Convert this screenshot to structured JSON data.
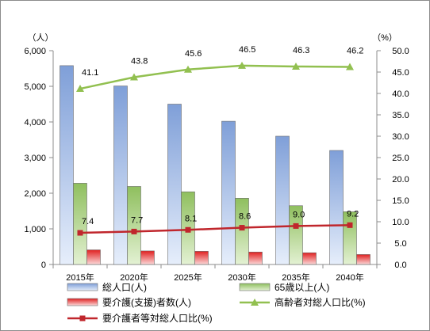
{
  "chart_data": {
    "type": "bar",
    "categories": [
      "2015年",
      "2020年",
      "2025年",
      "2030年",
      "2035年",
      "2040年"
    ],
    "y_left": {
      "label": "（人）",
      "min": 0,
      "max": 6000,
      "step": 1000,
      "ticks": [
        "0",
        "1,000",
        "2,000",
        "3,000",
        "4,000",
        "5,000",
        "6,000"
      ]
    },
    "y_right": {
      "label": "（%）",
      "min": 0,
      "max": 50,
      "step": 5,
      "ticks": [
        "0.0",
        "5.0",
        "10.0",
        "15.0",
        "20.0",
        "25.0",
        "30.0",
        "35.0",
        "40.0",
        "45.0",
        "50.0"
      ]
    },
    "grid": false,
    "legend_position": "bottom",
    "series": [
      {
        "name": "総人口(人)",
        "type": "bar",
        "axis": "left",
        "color": "#7f9fd8",
        "light": "#e6eefb",
        "values": [
          5580,
          5010,
          4500,
          4020,
          3600,
          3200
        ]
      },
      {
        "name": "65歳以上(人)",
        "type": "bar",
        "axis": "left",
        "color": "#8fbf5e",
        "light": "#e3f1d3",
        "values": [
          2280,
          2190,
          2040,
          1860,
          1650,
          1480
        ]
      },
      {
        "name": "要介護(支援)者数(人)",
        "type": "bar",
        "axis": "left",
        "color": "#e02020",
        "light": "#fbd8d8",
        "values": [
          410,
          380,
          370,
          350,
          330,
          280
        ]
      },
      {
        "name": "高齢者対総人口比(%)",
        "type": "line",
        "axis": "right",
        "color": "#92c050",
        "marker": "triangle",
        "values": [
          41.1,
          43.8,
          45.6,
          46.5,
          46.3,
          46.2
        ],
        "labels": [
          "41.1",
          "43.8",
          "45.6",
          "46.5",
          "46.3",
          "46.2"
        ]
      },
      {
        "name": "要介護者等対総人口比(%)",
        "type": "line",
        "axis": "right",
        "color": "#c0262c",
        "marker": "square",
        "values": [
          7.4,
          7.7,
          8.1,
          8.6,
          9.0,
          9.2
        ],
        "labels": [
          "7.4",
          "7.7",
          "8.1",
          "8.6",
          "9.0",
          "9.2"
        ]
      }
    ]
  }
}
